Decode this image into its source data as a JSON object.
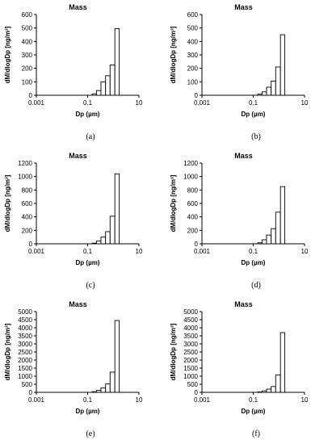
{
  "chart_data": [
    {
      "type": "bar",
      "title": "Mass",
      "xlabel": "Dp (µm)",
      "ylabel": "dM/dlogDp [ng/m³]",
      "x_scale": "log",
      "xlim": [
        0.001,
        10
      ],
      "x_ticks": [
        "0.001",
        "0.1",
        "10"
      ],
      "ylim": [
        0,
        600
      ],
      "y_ticks": [
        0,
        100,
        200,
        300,
        400,
        500,
        600
      ],
      "bins": [
        {
          "lo": 0.00133,
          "hi": 0.0024,
          "value": 0
        },
        {
          "lo": 0.15,
          "hi": 0.22,
          "value": 10
        },
        {
          "lo": 0.22,
          "hi": 0.33,
          "value": 35
        },
        {
          "lo": 0.33,
          "hi": 0.5,
          "value": 100
        },
        {
          "lo": 0.5,
          "hi": 0.75,
          "value": 145
        },
        {
          "lo": 0.75,
          "hi": 1.15,
          "value": 225
        },
        {
          "lo": 1.15,
          "hi": 1.7,
          "value": 495
        }
      ],
      "caption": "(a)"
    },
    {
      "type": "bar",
      "title": "Mass",
      "xlabel": "Dp (µm)",
      "ylabel": "dM/dlogDp [ng/m³]",
      "x_scale": "log",
      "xlim": [
        0.001,
        10
      ],
      "x_ticks": [
        "0.001",
        "0.1",
        "10"
      ],
      "ylim": [
        0,
        600
      ],
      "y_ticks": [
        0,
        100,
        200,
        300,
        400,
        500,
        600
      ],
      "bins": [
        {
          "lo": 0.00133,
          "hi": 0.0024,
          "value": 0
        },
        {
          "lo": 0.15,
          "hi": 0.22,
          "value": 8
        },
        {
          "lo": 0.22,
          "hi": 0.33,
          "value": 25
        },
        {
          "lo": 0.33,
          "hi": 0.5,
          "value": 60
        },
        {
          "lo": 0.5,
          "hi": 0.75,
          "value": 105
        },
        {
          "lo": 0.75,
          "hi": 1.15,
          "value": 210
        },
        {
          "lo": 1.15,
          "hi": 1.7,
          "value": 450
        }
      ],
      "caption": "(b)"
    },
    {
      "type": "bar",
      "title": "Mass",
      "xlabel": "Dp (µm)",
      "ylabel": "dM/dlogDp [ng/m³]",
      "x_scale": "log",
      "xlim": [
        0.001,
        10
      ],
      "x_ticks": [
        "0.001",
        "0.1",
        "10"
      ],
      "ylim": [
        0,
        1200
      ],
      "y_ticks": [
        0,
        200,
        400,
        600,
        800,
        1000,
        1200
      ],
      "bins": [
        {
          "lo": 0.00133,
          "hi": 0.0024,
          "value": 0
        },
        {
          "lo": 0.15,
          "hi": 0.22,
          "value": 10
        },
        {
          "lo": 0.22,
          "hi": 0.33,
          "value": 40
        },
        {
          "lo": 0.33,
          "hi": 0.5,
          "value": 100
        },
        {
          "lo": 0.5,
          "hi": 0.75,
          "value": 180
        },
        {
          "lo": 0.75,
          "hi": 1.15,
          "value": 410
        },
        {
          "lo": 1.15,
          "hi": 1.7,
          "value": 1040
        }
      ],
      "caption": "(c)"
    },
    {
      "type": "bar",
      "title": "Mass",
      "xlabel": "Dp (µm)",
      "ylabel": "dM/dlogDp [ng/m³]",
      "x_scale": "log",
      "xlim": [
        0.001,
        10
      ],
      "x_ticks": [
        "0.001",
        "0.1",
        "10"
      ],
      "ylim": [
        0,
        1200
      ],
      "y_ticks": [
        0,
        200,
        400,
        600,
        800,
        1000,
        1200
      ],
      "bins": [
        {
          "lo": 0.00133,
          "hi": 0.0024,
          "value": 0
        },
        {
          "lo": 0.15,
          "hi": 0.22,
          "value": 15
        },
        {
          "lo": 0.22,
          "hi": 0.33,
          "value": 60
        },
        {
          "lo": 0.33,
          "hi": 0.5,
          "value": 130
        },
        {
          "lo": 0.5,
          "hi": 0.75,
          "value": 225
        },
        {
          "lo": 0.75,
          "hi": 1.15,
          "value": 470
        },
        {
          "lo": 1.15,
          "hi": 1.7,
          "value": 850
        }
      ],
      "caption": "(d)"
    },
    {
      "type": "bar",
      "title": "Mass",
      "xlabel": "Dp (µm)",
      "ylabel": "dM/dlogDp [ng/m³]",
      "x_scale": "log",
      "xlim": [
        0.001,
        10
      ],
      "x_ticks": [
        "0.001",
        "0.1",
        "10"
      ],
      "ylim": [
        0,
        5000
      ],
      "y_ticks": [
        0,
        500,
        1000,
        1500,
        2000,
        2500,
        3000,
        3500,
        4000,
        4500,
        5000
      ],
      "bins": [
        {
          "lo": 0.00133,
          "hi": 0.0024,
          "value": 0
        },
        {
          "lo": 0.15,
          "hi": 0.22,
          "value": 40
        },
        {
          "lo": 0.22,
          "hi": 0.33,
          "value": 120
        },
        {
          "lo": 0.33,
          "hi": 0.5,
          "value": 280
        },
        {
          "lo": 0.5,
          "hi": 0.75,
          "value": 520
        },
        {
          "lo": 0.75,
          "hi": 1.15,
          "value": 1250
        },
        {
          "lo": 1.15,
          "hi": 1.7,
          "value": 4450
        }
      ],
      "caption": "(e)"
    },
    {
      "type": "bar",
      "title": "Mass",
      "xlabel": "Dp (µm)",
      "ylabel": "dM/dlogDp [ng/m³]",
      "x_scale": "log",
      "xlim": [
        0.001,
        10
      ],
      "x_ticks": [
        "0.001",
        "0.1",
        "10"
      ],
      "ylim": [
        0,
        5000
      ],
      "y_ticks": [
        0,
        500,
        1000,
        1500,
        2000,
        2500,
        3000,
        3500,
        4000,
        4500,
        5000
      ],
      "bins": [
        {
          "lo": 0.00133,
          "hi": 0.0024,
          "value": 0
        },
        {
          "lo": 0.15,
          "hi": 0.22,
          "value": 30
        },
        {
          "lo": 0.22,
          "hi": 0.33,
          "value": 90
        },
        {
          "lo": 0.33,
          "hi": 0.5,
          "value": 200
        },
        {
          "lo": 0.5,
          "hi": 0.75,
          "value": 360
        },
        {
          "lo": 0.75,
          "hi": 1.15,
          "value": 1080
        },
        {
          "lo": 1.15,
          "hi": 1.7,
          "value": 3700
        }
      ],
      "caption": "(f)"
    }
  ]
}
